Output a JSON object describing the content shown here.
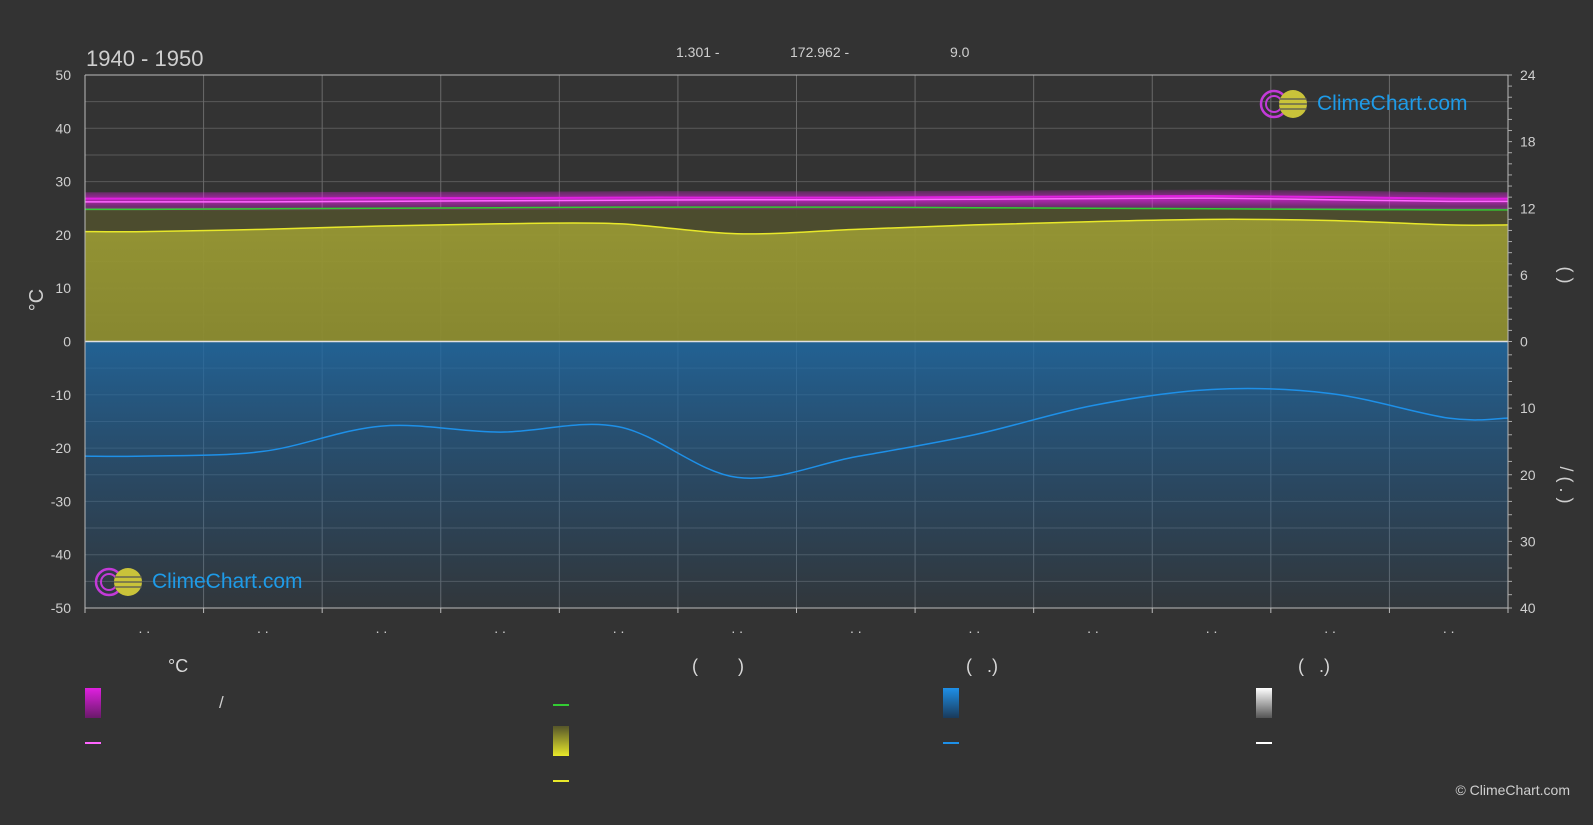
{
  "title": "1940 - 1950",
  "header_stats": [
    "1.301 -",
    "172.962 -",
    "9.0"
  ],
  "brand": "ClimeChart.com",
  "copyright": "© ClimeChart.com",
  "colors": {
    "background": "#333333",
    "temp_range": "#e020e0",
    "temp_mean": "#ff66ff",
    "daylight": "#33cc33",
    "sunshine_fill": "#a8a832",
    "sunshine_line": "#e8e82a",
    "precip_fill": "#1f6aa5",
    "precip_line": "#1e90e8",
    "snow": "#ffffff"
  },
  "legend": {
    "headers": [
      "°C",
      "(        )",
      "(   .)",
      "(   .)"
    ],
    "items": {
      "temp_range_label": "/"
    }
  },
  "chart_data": {
    "type": "line",
    "title": "1940 - 1950",
    "x": [
      "..",
      "..",
      "..",
      "..",
      "..",
      "..",
      "..",
      "..",
      "..",
      "..",
      "..",
      ".."
    ],
    "x_tick_labels": [
      ". .",
      ". .",
      ". .",
      ". .",
      ". .",
      ". .",
      ". .",
      ". .",
      ". .",
      ". .",
      ". .",
      ". ."
    ],
    "y_left": {
      "label": "°C",
      "range": [
        -50,
        50
      ],
      "ticks": [
        50,
        40,
        30,
        20,
        10,
        0,
        -10,
        -20,
        -30,
        -40,
        -50
      ]
    },
    "y_right_top": {
      "label": "(   )",
      "range": [
        0,
        24
      ],
      "ticks": [
        24,
        18,
        12,
        6,
        0
      ]
    },
    "y_right_bottom": {
      "label": "/ (  .  )",
      "range": [
        0,
        40
      ],
      "ticks": [
        0,
        10,
        20,
        30,
        40
      ]
    },
    "grid": true,
    "series": [
      {
        "key": "temp_max",
        "axis": "left",
        "values": [
          26.8,
          26.8,
          26.9,
          26.9,
          27.0,
          27.0,
          27.0,
          27.1,
          27.2,
          27.3,
          27.1,
          26.8
        ]
      },
      {
        "key": "temp_mean",
        "axis": "left",
        "values": [
          26.2,
          26.2,
          26.3,
          26.4,
          26.5,
          26.6,
          26.6,
          26.7,
          26.8,
          26.9,
          26.6,
          26.3
        ]
      },
      {
        "key": "daylight",
        "axis": "right_top",
        "values": [
          11.9,
          11.95,
          12.0,
          12.05,
          12.1,
          12.1,
          12.1,
          12.05,
          12.0,
          11.95,
          11.9,
          11.85
        ]
      },
      {
        "key": "sunshine",
        "axis": "right_top",
        "values": [
          9.9,
          10.1,
          10.4,
          10.6,
          10.6,
          9.7,
          10.1,
          10.5,
          10.8,
          11.0,
          10.9,
          10.5
        ]
      },
      {
        "key": "precipitation",
        "axis": "right_bottom",
        "values": [
          17.2,
          16.5,
          12.7,
          13.6,
          12.8,
          20.4,
          17.3,
          14.0,
          9.6,
          7.2,
          7.8,
          11.5
        ]
      }
    ]
  }
}
